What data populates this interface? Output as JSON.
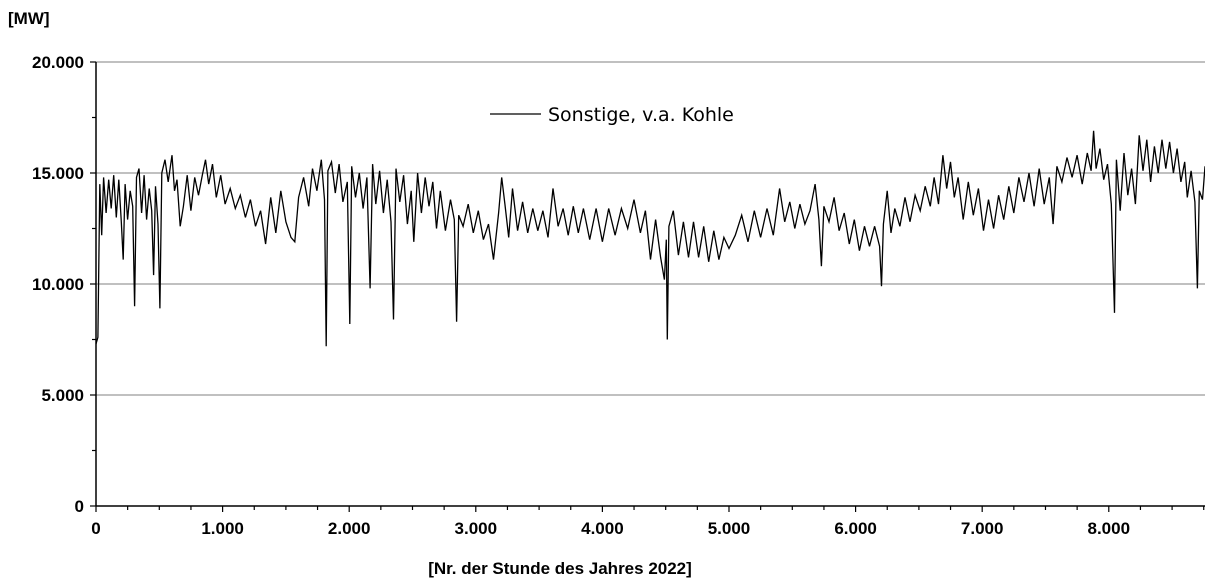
{
  "chart_data": {
    "type": "line",
    "ylabel": "[MW]",
    "xlabel": "[Nr. der Stunde des Jahres 2022]",
    "xlim": [
      0,
      8760
    ],
    "ylim": [
      0,
      20000
    ],
    "x_ticks": [
      0,
      1000,
      2000,
      3000,
      4000,
      5000,
      6000,
      7000,
      8000
    ],
    "x_tick_labels": [
      "0",
      "1.000",
      "2.000",
      "3.000",
      "4.000",
      "5.000",
      "6.000",
      "7.000",
      "8.000"
    ],
    "y_ticks": [
      0,
      5000,
      10000,
      15000,
      20000
    ],
    "y_tick_labels": [
      "0",
      "5.000",
      "10.000",
      "15.000",
      "20.000"
    ],
    "grid": "horizontal",
    "legend_position": "top-center",
    "colors": {
      "line": "#000000",
      "grid": "#808080"
    },
    "series": [
      {
        "name": "Sonstige, v.a. Kohle",
        "points": [
          [
            0,
            7300
          ],
          [
            15,
            7600
          ],
          [
            30,
            14500
          ],
          [
            45,
            12200
          ],
          [
            60,
            14800
          ],
          [
            80,
            13200
          ],
          [
            100,
            14700
          ],
          [
            120,
            13400
          ],
          [
            140,
            14900
          ],
          [
            160,
            13000
          ],
          [
            180,
            14700
          ],
          [
            200,
            12800
          ],
          [
            215,
            11100
          ],
          [
            230,
            14500
          ],
          [
            250,
            12900
          ],
          [
            270,
            14200
          ],
          [
            290,
            13500
          ],
          [
            305,
            9000
          ],
          [
            320,
            14800
          ],
          [
            340,
            15200
          ],
          [
            360,
            13200
          ],
          [
            380,
            14900
          ],
          [
            400,
            12900
          ],
          [
            420,
            14300
          ],
          [
            440,
            13300
          ],
          [
            455,
            10400
          ],
          [
            470,
            14400
          ],
          [
            490,
            12700
          ],
          [
            505,
            8900
          ],
          [
            520,
            15000
          ],
          [
            545,
            15600
          ],
          [
            570,
            14600
          ],
          [
            600,
            15800
          ],
          [
            620,
            14200
          ],
          [
            640,
            14700
          ],
          [
            665,
            12600
          ],
          [
            690,
            13500
          ],
          [
            720,
            14900
          ],
          [
            750,
            13300
          ],
          [
            780,
            14800
          ],
          [
            810,
            14000
          ],
          [
            840,
            14900
          ],
          [
            865,
            15600
          ],
          [
            890,
            14500
          ],
          [
            920,
            15400
          ],
          [
            950,
            13900
          ],
          [
            985,
            14900
          ],
          [
            1020,
            13600
          ],
          [
            1060,
            14300
          ],
          [
            1100,
            13400
          ],
          [
            1140,
            14000
          ],
          [
            1180,
            13000
          ],
          [
            1220,
            13800
          ],
          [
            1260,
            12600
          ],
          [
            1300,
            13300
          ],
          [
            1340,
            11800
          ],
          [
            1380,
            13900
          ],
          [
            1420,
            12300
          ],
          [
            1460,
            14200
          ],
          [
            1500,
            12800
          ],
          [
            1540,
            12100
          ],
          [
            1570,
            11900
          ],
          [
            1600,
            13900
          ],
          [
            1640,
            14800
          ],
          [
            1680,
            13500
          ],
          [
            1710,
            15200
          ],
          [
            1745,
            14200
          ],
          [
            1780,
            15600
          ],
          [
            1805,
            13800
          ],
          [
            1818,
            7200
          ],
          [
            1832,
            15100
          ],
          [
            1860,
            15500
          ],
          [
            1890,
            14100
          ],
          [
            1920,
            15400
          ],
          [
            1950,
            13700
          ],
          [
            1985,
            14600
          ],
          [
            2005,
            8200
          ],
          [
            2020,
            15300
          ],
          [
            2050,
            13900
          ],
          [
            2080,
            15000
          ],
          [
            2110,
            13400
          ],
          [
            2140,
            14800
          ],
          [
            2165,
            9800
          ],
          [
            2185,
            15400
          ],
          [
            2210,
            13600
          ],
          [
            2240,
            15100
          ],
          [
            2270,
            13200
          ],
          [
            2300,
            14700
          ],
          [
            2330,
            12800
          ],
          [
            2350,
            8400
          ],
          [
            2370,
            15200
          ],
          [
            2400,
            13700
          ],
          [
            2430,
            14900
          ],
          [
            2460,
            12700
          ],
          [
            2490,
            14200
          ],
          [
            2510,
            11900
          ],
          [
            2540,
            15000
          ],
          [
            2570,
            13200
          ],
          [
            2600,
            14800
          ],
          [
            2630,
            13500
          ],
          [
            2660,
            14600
          ],
          [
            2690,
            12500
          ],
          [
            2720,
            14200
          ],
          [
            2760,
            12400
          ],
          [
            2800,
            13800
          ],
          [
            2830,
            12900
          ],
          [
            2848,
            8300
          ],
          [
            2865,
            13100
          ],
          [
            2900,
            12600
          ],
          [
            2940,
            13600
          ],
          [
            2980,
            12300
          ],
          [
            3020,
            13300
          ],
          [
            3060,
            12000
          ],
          [
            3100,
            12700
          ],
          [
            3140,
            11100
          ],
          [
            3180,
            13200
          ],
          [
            3205,
            14800
          ],
          [
            3230,
            13600
          ],
          [
            3260,
            12100
          ],
          [
            3290,
            14300
          ],
          [
            3330,
            12400
          ],
          [
            3370,
            13700
          ],
          [
            3410,
            12300
          ],
          [
            3450,
            13400
          ],
          [
            3490,
            12400
          ],
          [
            3530,
            13300
          ],
          [
            3570,
            12100
          ],
          [
            3610,
            14300
          ],
          [
            3650,
            12600
          ],
          [
            3690,
            13400
          ],
          [
            3730,
            12200
          ],
          [
            3770,
            13500
          ],
          [
            3810,
            12300
          ],
          [
            3850,
            13400
          ],
          [
            3900,
            12000
          ],
          [
            3950,
            13400
          ],
          [
            4000,
            11900
          ],
          [
            4050,
            13400
          ],
          [
            4100,
            12200
          ],
          [
            4150,
            13400
          ],
          [
            4200,
            12500
          ],
          [
            4250,
            13800
          ],
          [
            4300,
            12300
          ],
          [
            4340,
            13300
          ],
          [
            4380,
            11100
          ],
          [
            4420,
            12900
          ],
          [
            4460,
            11200
          ],
          [
            4490,
            10200
          ],
          [
            4505,
            12000
          ],
          [
            4513,
            7500
          ],
          [
            4525,
            12600
          ],
          [
            4560,
            13300
          ],
          [
            4600,
            11300
          ],
          [
            4640,
            12800
          ],
          [
            4680,
            11200
          ],
          [
            4720,
            12800
          ],
          [
            4760,
            11200
          ],
          [
            4800,
            12600
          ],
          [
            4840,
            11000
          ],
          [
            4880,
            12400
          ],
          [
            4920,
            11100
          ],
          [
            4960,
            12100
          ],
          [
            5000,
            11600
          ],
          [
            5050,
            12200
          ],
          [
            5100,
            13100
          ],
          [
            5150,
            11900
          ],
          [
            5200,
            13300
          ],
          [
            5250,
            12100
          ],
          [
            5300,
            13400
          ],
          [
            5350,
            12200
          ],
          [
            5400,
            14300
          ],
          [
            5440,
            12800
          ],
          [
            5480,
            13700
          ],
          [
            5520,
            12500
          ],
          [
            5560,
            13600
          ],
          [
            5600,
            12700
          ],
          [
            5640,
            13300
          ],
          [
            5680,
            14500
          ],
          [
            5710,
            12900
          ],
          [
            5730,
            10800
          ],
          [
            5750,
            13500
          ],
          [
            5790,
            12800
          ],
          [
            5830,
            13900
          ],
          [
            5870,
            12400
          ],
          [
            5910,
            13200
          ],
          [
            5950,
            11800
          ],
          [
            5990,
            12900
          ],
          [
            6030,
            11500
          ],
          [
            6070,
            12600
          ],
          [
            6110,
            11700
          ],
          [
            6150,
            12600
          ],
          [
            6190,
            11700
          ],
          [
            6205,
            9900
          ],
          [
            6220,
            12700
          ],
          [
            6250,
            14200
          ],
          [
            6280,
            12300
          ],
          [
            6310,
            13400
          ],
          [
            6350,
            12600
          ],
          [
            6390,
            13900
          ],
          [
            6430,
            12800
          ],
          [
            6470,
            14000
          ],
          [
            6510,
            13300
          ],
          [
            6550,
            14400
          ],
          [
            6590,
            13500
          ],
          [
            6620,
            14800
          ],
          [
            6655,
            13600
          ],
          [
            6690,
            15800
          ],
          [
            6720,
            14300
          ],
          [
            6750,
            15500
          ],
          [
            6780,
            13900
          ],
          [
            6810,
            14800
          ],
          [
            6850,
            12900
          ],
          [
            6890,
            14600
          ],
          [
            6930,
            13100
          ],
          [
            6970,
            14300
          ],
          [
            7010,
            12400
          ],
          [
            7050,
            13800
          ],
          [
            7090,
            12500
          ],
          [
            7130,
            14000
          ],
          [
            7170,
            12900
          ],
          [
            7210,
            14400
          ],
          [
            7250,
            13200
          ],
          [
            7290,
            14800
          ],
          [
            7330,
            13700
          ],
          [
            7370,
            15000
          ],
          [
            7410,
            13500
          ],
          [
            7450,
            15200
          ],
          [
            7490,
            13600
          ],
          [
            7530,
            14800
          ],
          [
            7560,
            12700
          ],
          [
            7590,
            15300
          ],
          [
            7630,
            14600
          ],
          [
            7670,
            15700
          ],
          [
            7710,
            14800
          ],
          [
            7750,
            15800
          ],
          [
            7790,
            14500
          ],
          [
            7830,
            15900
          ],
          [
            7860,
            15100
          ],
          [
            7880,
            16900
          ],
          [
            7900,
            15200
          ],
          [
            7930,
            16100
          ],
          [
            7960,
            14700
          ],
          [
            7990,
            15400
          ],
          [
            8020,
            13600
          ],
          [
            8045,
            8700
          ],
          [
            8060,
            15600
          ],
          [
            8090,
            13300
          ],
          [
            8120,
            15900
          ],
          [
            8150,
            14000
          ],
          [
            8180,
            15200
          ],
          [
            8210,
            13600
          ],
          [
            8240,
            16700
          ],
          [
            8270,
            15100
          ],
          [
            8300,
            16500
          ],
          [
            8330,
            14600
          ],
          [
            8360,
            16200
          ],
          [
            8390,
            15000
          ],
          [
            8420,
            16500
          ],
          [
            8450,
            15200
          ],
          [
            8480,
            16400
          ],
          [
            8510,
            15000
          ],
          [
            8540,
            16100
          ],
          [
            8570,
            14600
          ],
          [
            8600,
            15500
          ],
          [
            8620,
            13900
          ],
          [
            8650,
            15100
          ],
          [
            8680,
            13700
          ],
          [
            8700,
            9800
          ],
          [
            8715,
            14200
          ],
          [
            8740,
            13800
          ],
          [
            8760,
            15300
          ]
        ]
      }
    ]
  }
}
